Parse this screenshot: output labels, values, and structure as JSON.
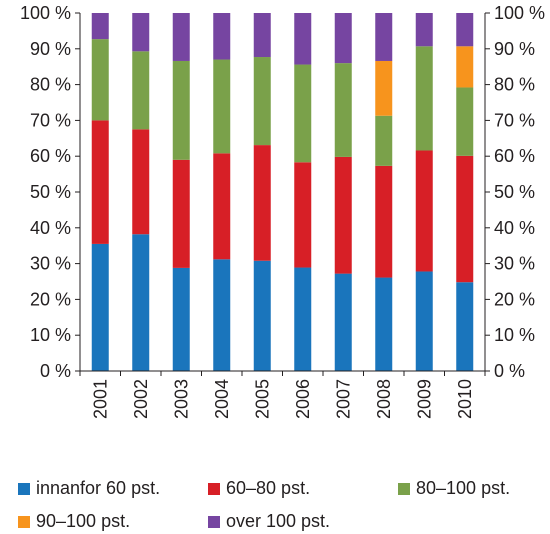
{
  "chart_data": {
    "type": "bar",
    "stacked": true,
    "categories": [
      "2001",
      "2002",
      "2003",
      "2004",
      "2005",
      "2006",
      "2007",
      "2008",
      "2009",
      "2010"
    ],
    "series": [
      {
        "name": "innanfor 60 pst.",
        "color": "#1a75bc",
        "values": [
          35.5,
          38.2,
          28.8,
          31.2,
          30.8,
          28.9,
          27.2,
          26.1,
          27.8,
          24.8
        ]
      },
      {
        "name": "60–80 pst.",
        "color": "#d71f26",
        "values": [
          34.5,
          29.3,
          30.2,
          29.6,
          32.3,
          29.4,
          32.6,
          31.2,
          33.8,
          35.3
        ]
      },
      {
        "name": "80–100 pst.",
        "color": "#7aa14a",
        "values": [
          22.7,
          21.8,
          27.6,
          26.2,
          24.6,
          27.3,
          26.2,
          14.0,
          29.1,
          19.1
        ]
      },
      {
        "name": "90–100 pst.",
        "color": "#f7941d",
        "values": [
          0,
          0,
          0,
          0,
          0,
          0,
          0,
          15.3,
          0,
          11.5
        ]
      },
      {
        "name": "over 100 pst.",
        "color": "#7645a1",
        "values": [
          7.3,
          10.7,
          13.4,
          13.0,
          12.3,
          14.4,
          14.0,
          13.4,
          9.3,
          9.3
        ]
      }
    ],
    "yticks": [
      "0 %",
      "10 %",
      "20 %",
      "30 %",
      "40 %",
      "50 %",
      "60 %",
      "70 %",
      "80 %",
      "90 %",
      "100 %"
    ],
    "ylim": [
      0,
      100
    ],
    "axes": "left and right",
    "grid": false,
    "legend_position": "bottom"
  }
}
